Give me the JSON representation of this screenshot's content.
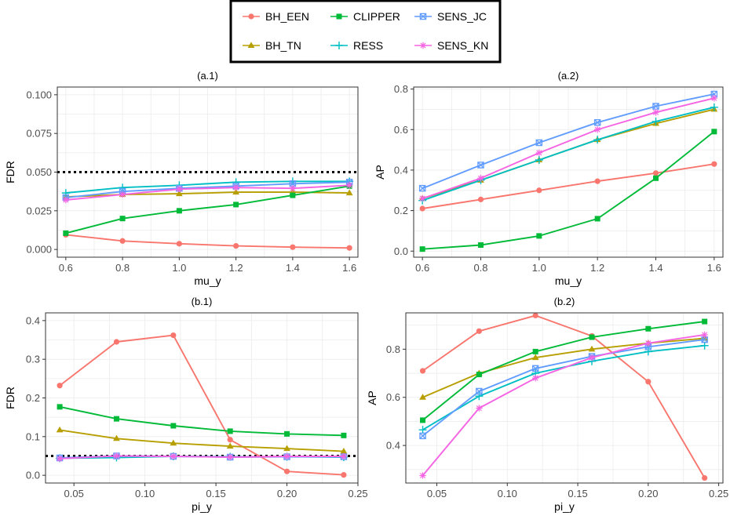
{
  "colors": {
    "BH_EEN": "#F8766D",
    "BH_TN": "#B79F00",
    "CLIPPER": "#00BA38",
    "RESS": "#00BFC4",
    "SENS_JC": "#619CFF",
    "SENS_KN": "#F564E3",
    "panel_border": "#333333",
    "grid": "#EBEBEB",
    "axis_text": "#4D4D4D",
    "reference_line": "#000000"
  },
  "legend": {
    "entries": [
      {
        "name": "BH_EEN",
        "marker": "circle"
      },
      {
        "name": "CLIPPER",
        "marker": "square"
      },
      {
        "name": "SENS_JC",
        "marker": "square-cross"
      },
      {
        "name": "BH_TN",
        "marker": "triangle"
      },
      {
        "name": "RESS",
        "marker": "plus"
      },
      {
        "name": "SENS_KN",
        "marker": "asterisk"
      }
    ]
  },
  "chart_data": [
    {
      "id": "a1",
      "type": "line",
      "title": "(a.1)",
      "xlabel": "mu_y",
      "ylabel": "FDR",
      "x": [
        0.6,
        0.8,
        1.0,
        1.2,
        1.4,
        1.6
      ],
      "xlim": [
        0.57,
        1.63
      ],
      "ylim": [
        -0.005,
        0.105
      ],
      "xticks": [
        0.6,
        0.8,
        1.0,
        1.2,
        1.4,
        1.6
      ],
      "xtick_labels": [
        "0.6",
        "0.8",
        "1.0",
        "1.2",
        "1.4",
        "1.6"
      ],
      "yticks": [
        0.0,
        0.025,
        0.05,
        0.075,
        0.1
      ],
      "ytick_labels": [
        "0.000",
        "0.025",
        "0.050",
        "0.075",
        "0.100"
      ],
      "reference_line": 0.05,
      "series": [
        {
          "name": "BH_EEN",
          "values": [
            0.0095,
            0.0055,
            0.0037,
            0.0023,
            0.0015,
            0.001
          ]
        },
        {
          "name": "BH_TN",
          "values": [
            0.034,
            0.0355,
            0.036,
            0.037,
            0.037,
            0.0365
          ]
        },
        {
          "name": "CLIPPER",
          "values": [
            0.0105,
            0.02,
            0.025,
            0.029,
            0.035,
            0.041
          ]
        },
        {
          "name": "RESS",
          "values": [
            0.0365,
            0.04,
            0.0415,
            0.0435,
            0.044,
            0.044
          ]
        },
        {
          "name": "SENS_JC",
          "values": [
            0.0335,
            0.0375,
            0.0395,
            0.041,
            0.0425,
            0.0435
          ]
        },
        {
          "name": "SENS_KN",
          "values": [
            0.032,
            0.0355,
            0.039,
            0.04,
            0.0395,
            0.0415
          ]
        }
      ]
    },
    {
      "id": "a2",
      "type": "line",
      "title": "(a.2)",
      "xlabel": "mu_y",
      "ylabel": "AP",
      "x": [
        0.6,
        0.8,
        1.0,
        1.2,
        1.4,
        1.6
      ],
      "xlim": [
        0.57,
        1.63
      ],
      "ylim": [
        -0.03,
        0.81
      ],
      "xticks": [
        0.6,
        0.8,
        1.0,
        1.2,
        1.4,
        1.6
      ],
      "xtick_labels": [
        "0.6",
        "0.8",
        "1.0",
        "1.2",
        "1.4",
        "1.6"
      ],
      "yticks": [
        0.0,
        0.2,
        0.4,
        0.6,
        0.8
      ],
      "ytick_labels": [
        "0.0",
        "0.2",
        "0.4",
        "0.6",
        "0.8"
      ],
      "series": [
        {
          "name": "BH_EEN",
          "values": [
            0.21,
            0.255,
            0.3,
            0.345,
            0.385,
            0.43
          ]
        },
        {
          "name": "BH_TN",
          "values": [
            0.26,
            0.35,
            0.45,
            0.55,
            0.63,
            0.7
          ]
        },
        {
          "name": "CLIPPER",
          "values": [
            0.01,
            0.03,
            0.075,
            0.16,
            0.36,
            0.59
          ]
        },
        {
          "name": "RESS",
          "values": [
            0.25,
            0.35,
            0.45,
            0.55,
            0.64,
            0.71
          ]
        },
        {
          "name": "SENS_JC",
          "values": [
            0.31,
            0.425,
            0.535,
            0.635,
            0.715,
            0.775
          ]
        },
        {
          "name": "SENS_KN",
          "values": [
            0.26,
            0.36,
            0.485,
            0.6,
            0.685,
            0.755
          ]
        }
      ]
    },
    {
      "id": "b1",
      "type": "line",
      "title": "(b.1)",
      "xlabel": "pi_y",
      "ylabel": "FDR",
      "x": [
        0.04,
        0.08,
        0.12,
        0.16,
        0.2,
        0.24
      ],
      "xlim": [
        0.03,
        0.25
      ],
      "ylim": [
        -0.02,
        0.42
      ],
      "xticks": [
        0.05,
        0.1,
        0.15,
        0.2,
        0.25
      ],
      "xtick_labels": [
        "0.05",
        "0.10",
        "0.15",
        "0.20",
        "0.25"
      ],
      "yticks": [
        0.0,
        0.1,
        0.2,
        0.3,
        0.4
      ],
      "ytick_labels": [
        "0.0",
        "0.1",
        "0.2",
        "0.3",
        "0.4"
      ],
      "reference_line": 0.05,
      "series": [
        {
          "name": "BH_EEN",
          "values": [
            0.232,
            0.345,
            0.362,
            0.092,
            0.01,
            0.001
          ]
        },
        {
          "name": "BH_TN",
          "values": [
            0.117,
            0.095,
            0.083,
            0.075,
            0.069,
            0.062
          ]
        },
        {
          "name": "CLIPPER",
          "values": [
            0.177,
            0.146,
            0.128,
            0.114,
            0.107,
            0.103
          ]
        },
        {
          "name": "RESS",
          "values": [
            0.044,
            0.046,
            0.049,
            0.048,
            0.048,
            0.047
          ]
        },
        {
          "name": "SENS_JC",
          "values": [
            0.045,
            0.05,
            0.049,
            0.047,
            0.048,
            0.048
          ]
        },
        {
          "name": "SENS_KN",
          "values": [
            0.043,
            0.05,
            0.049,
            0.047,
            0.049,
            0.049
          ]
        }
      ]
    },
    {
      "id": "b2",
      "type": "line",
      "title": "(b.2)",
      "xlabel": "pi_y",
      "ylabel": "AP",
      "x": [
        0.04,
        0.08,
        0.12,
        0.16,
        0.2,
        0.24
      ],
      "xlim": [
        0.028,
        0.253
      ],
      "ylim": [
        0.244,
        0.951
      ],
      "xticks": [
        0.05,
        0.1,
        0.15,
        0.2,
        0.25
      ],
      "xtick_labels": [
        "0.05",
        "0.10",
        "0.15",
        "0.20",
        "0.25"
      ],
      "yticks": [
        0.4,
        0.6,
        0.8
      ],
      "ytick_labels": [
        "0.4",
        "0.6",
        "0.8"
      ],
      "series": [
        {
          "name": "BH_EEN",
          "values": [
            0.71,
            0.875,
            0.94,
            0.855,
            0.665,
            0.265
          ]
        },
        {
          "name": "BH_TN",
          "values": [
            0.6,
            0.7,
            0.765,
            0.8,
            0.825,
            0.845
          ]
        },
        {
          "name": "CLIPPER",
          "values": [
            0.505,
            0.695,
            0.79,
            0.85,
            0.885,
            0.915
          ]
        },
        {
          "name": "RESS",
          "values": [
            0.465,
            0.605,
            0.7,
            0.75,
            0.79,
            0.815
          ]
        },
        {
          "name": "SENS_JC",
          "values": [
            0.44,
            0.625,
            0.72,
            0.77,
            0.81,
            0.84
          ]
        },
        {
          "name": "SENS_KN",
          "values": [
            0.275,
            0.555,
            0.68,
            0.765,
            0.825,
            0.86
          ]
        }
      ]
    }
  ]
}
